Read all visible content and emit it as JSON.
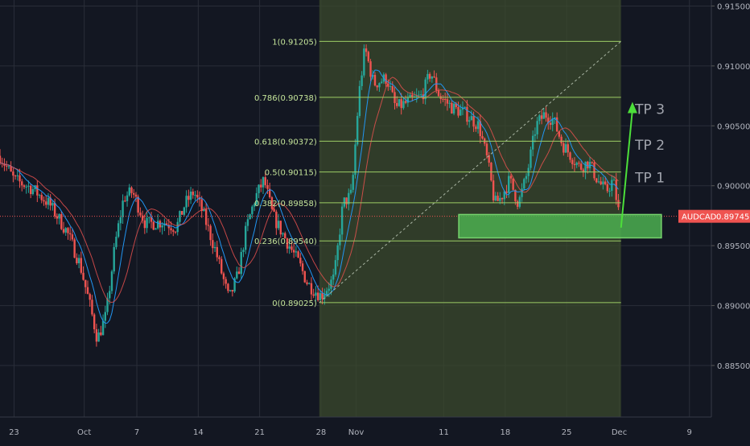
{
  "chart_data": {
    "type": "candlestick",
    "symbol": "AUDCAD",
    "current_price": "0.89745",
    "colors": {
      "background": "#131722",
      "up": "#26a69a",
      "down": "#ef5350",
      "fib_line": "#9ccc65",
      "fib_zone_fill": "#3b4a2c",
      "support_box": "#4caf50",
      "arrow": "#4cdf3a",
      "ma_fast": "#2196f3",
      "ma_slow": "#ef5350",
      "price_tag": "#ef5350",
      "grid": "#2a2e39"
    },
    "y_axis": {
      "ticks": [
        "0.91500",
        "0.91000",
        "0.90500",
        "0.90000",
        "0.89500",
        "0.89000",
        "0.88500"
      ],
      "tick_values": [
        0.915,
        0.91,
        0.905,
        0.9,
        0.895,
        0.89,
        0.885
      ],
      "range": [
        0.8807,
        0.9155
      ]
    },
    "x_axis": {
      "ticks": [
        "23",
        "Oct",
        "7",
        "14",
        "21",
        "28",
        "Nov",
        "11",
        "18",
        "25",
        "Dec",
        "9"
      ],
      "tick_days": [
        0,
        8,
        14,
        21,
        28,
        35,
        39,
        49,
        56,
        63,
        69,
        77
      ],
      "range_days": [
        -1.6,
        79.5
      ]
    },
    "fib_levels": [
      {
        "label": "1(0.91205)",
        "value": 0.91205
      },
      {
        "label": "0.786(0.90738)",
        "value": 0.90738
      },
      {
        "label": "0.618(0.90372)",
        "value": 0.90372
      },
      {
        "label": "0.5(0.90115)",
        "value": 0.90115
      },
      {
        "label": "0.382(0.89858)",
        "value": 0.89858
      },
      {
        "label": "0.236(0.89540)",
        "value": 0.8954
      },
      {
        "label": "0(0.89025)",
        "value": 0.89025
      }
    ],
    "fib_zone": {
      "start_day": 34.8,
      "end_day": 69.2
    },
    "support_zone": {
      "low": 0.89565,
      "high": 0.8976,
      "start_day": 50.7,
      "end_day": 73.8
    },
    "targets": [
      {
        "label": "TP 3",
        "value": 0.9064
      },
      {
        "label": "TP 2",
        "value": 0.9034
      },
      {
        "label": "TP 1",
        "value": 0.9007
      }
    ],
    "arrow": {
      "from_day": 69.2,
      "from_value": 0.8965,
      "to_day": 70.5,
      "to_value": 0.907
    },
    "price_path": [
      {
        "day": -1.6,
        "close": 0.9025
      },
      {
        "day": 0,
        "close": 0.9005
      },
      {
        "day": 2,
        "close": 0.8998
      },
      {
        "day": 4,
        "close": 0.8985
      },
      {
        "day": 6,
        "close": 0.8962
      },
      {
        "day": 7.5,
        "close": 0.8935
      },
      {
        "day": 8.5,
        "close": 0.8905
      },
      {
        "day": 9.5,
        "close": 0.8872
      },
      {
        "day": 10.5,
        "close": 0.8892
      },
      {
        "day": 11.5,
        "close": 0.895
      },
      {
        "day": 12.5,
        "close": 0.899
      },
      {
        "day": 13.5,
        "close": 0.8995
      },
      {
        "day": 15,
        "close": 0.8968
      },
      {
        "day": 17,
        "close": 0.897
      },
      {
        "day": 18.5,
        "close": 0.8965
      },
      {
        "day": 19.5,
        "close": 0.8985
      },
      {
        "day": 20.5,
        "close": 0.8995
      },
      {
        "day": 21.5,
        "close": 0.8978
      },
      {
        "day": 23,
        "close": 0.8945
      },
      {
        "day": 24.5,
        "close": 0.8905
      },
      {
        "day": 25.5,
        "close": 0.8925
      },
      {
        "day": 26.5,
        "close": 0.8965
      },
      {
        "day": 27.5,
        "close": 0.899
      },
      {
        "day": 28.5,
        "close": 0.9005
      },
      {
        "day": 29.5,
        "close": 0.8975
      },
      {
        "day": 31,
        "close": 0.8955
      },
      {
        "day": 32.5,
        "close": 0.8935
      },
      {
        "day": 33.5,
        "close": 0.8918
      },
      {
        "day": 35,
        "close": 0.8908
      },
      {
        "day": 36.5,
        "close": 0.8923
      },
      {
        "day": 37.5,
        "close": 0.8985
      },
      {
        "day": 38.5,
        "close": 0.8993
      },
      {
        "day": 39.3,
        "close": 0.9075
      },
      {
        "day": 40,
        "close": 0.9115
      },
      {
        "day": 41,
        "close": 0.9085
      },
      {
        "day": 42.5,
        "close": 0.909
      },
      {
        "day": 43.5,
        "close": 0.9065
      },
      {
        "day": 45,
        "close": 0.907
      },
      {
        "day": 46.5,
        "close": 0.9075
      },
      {
        "day": 47.5,
        "close": 0.9095
      },
      {
        "day": 48.5,
        "close": 0.9075
      },
      {
        "day": 50,
        "close": 0.9065
      },
      {
        "day": 51.5,
        "close": 0.906
      },
      {
        "day": 53,
        "close": 0.905
      },
      {
        "day": 54,
        "close": 0.902
      },
      {
        "day": 54.8,
        "close": 0.8985
      },
      {
        "day": 55.5,
        "close": 0.899
      },
      {
        "day": 56.5,
        "close": 0.9005
      },
      {
        "day": 57.5,
        "close": 0.8985
      },
      {
        "day": 58.5,
        "close": 0.901
      },
      {
        "day": 59.5,
        "close": 0.905
      },
      {
        "day": 60.5,
        "close": 0.906
      },
      {
        "day": 61.5,
        "close": 0.9055
      },
      {
        "day": 62.5,
        "close": 0.9035
      },
      {
        "day": 63.5,
        "close": 0.9025
      },
      {
        "day": 64.5,
        "close": 0.9015
      },
      {
        "day": 65.5,
        "close": 0.902
      },
      {
        "day": 66.5,
        "close": 0.9005
      },
      {
        "day": 67.5,
        "close": 0.8995
      },
      {
        "day": 68.3,
        "close": 0.9005
      },
      {
        "day": 69,
        "close": 0.8975
      }
    ]
  }
}
